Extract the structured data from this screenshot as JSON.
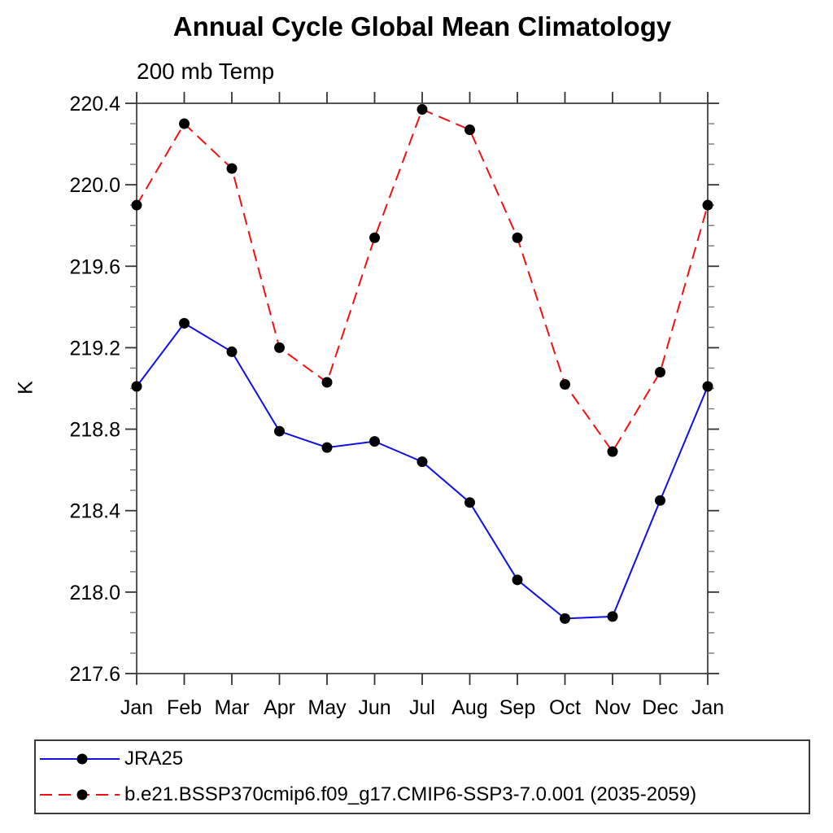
{
  "chart_data": {
    "type": "line",
    "title": "Annual Cycle Global Mean Climatology",
    "subtitle": "200 mb Temp",
    "ylabel": "K",
    "categories": [
      "Jan",
      "Feb",
      "Mar",
      "Apr",
      "May",
      "Jun",
      "Jul",
      "Aug",
      "Sep",
      "Oct",
      "Nov",
      "Dec",
      "Jan"
    ],
    "series": [
      {
        "name": "JRA25",
        "line_color": "#0f0fe6",
        "line_style": "solid",
        "marker": "filled-circle",
        "marker_color": "#000000",
        "values": [
          219.01,
          219.32,
          219.18,
          218.79,
          218.71,
          218.74,
          218.64,
          218.44,
          218.06,
          217.87,
          217.88,
          218.45,
          219.01
        ]
      },
      {
        "name": "b.e21.BSSP370cmip6.f09_g17.CMIP6-SSP3-7.0.001 (2035-2059)",
        "line_color": "#f21111",
        "line_style": "dashed",
        "marker": "filled-circle",
        "marker_color": "#000000",
        "values": [
          219.9,
          220.3,
          220.08,
          219.2,
          219.03,
          219.74,
          220.37,
          220.27,
          219.74,
          219.02,
          218.69,
          219.08,
          219.9
        ]
      }
    ],
    "ylim": [
      217.6,
      220.4
    ],
    "yticks": [
      217.6,
      218.0,
      218.4,
      218.8,
      219.2,
      219.6,
      220.0,
      220.4
    ],
    "y_minor_step": 0.1,
    "grid": false,
    "legend_position": "bottom-left",
    "frame_color": "#555555",
    "tick_color": "#333333",
    "minor_tick_color": "#777777"
  }
}
